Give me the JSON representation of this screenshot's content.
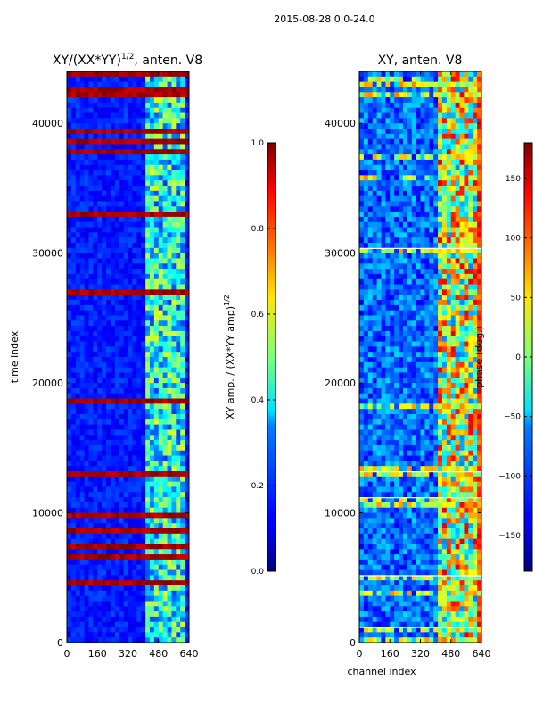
{
  "figure_title": "2015-08-28 0.0-24.0",
  "chart_data": [
    {
      "type": "heatmap",
      "title_prefix": "XY/(XX*YY)",
      "title_exponent": "1/2",
      "title_suffix": ", anten. V8",
      "xlabel": "",
      "ylabel": "time index",
      "x_ticks": [
        0,
        160,
        320,
        480,
        640
      ],
      "y_ticks": [
        0,
        10000,
        20000,
        30000,
        40000
      ],
      "xlim": [
        0,
        640
      ],
      "ylim": [
        0,
        44000
      ],
      "colormap": "jet",
      "colorbar": {
        "label_text": "XY amp. / (XX*YY amp)",
        "label_exponent": "1/2",
        "range": [
          0.0,
          1.0
        ],
        "ticks": [
          "0.0",
          "0.2",
          "0.4",
          "0.6",
          "0.8",
          "1.0"
        ]
      }
    },
    {
      "type": "heatmap",
      "title": "XY, anten. V8",
      "xlabel": "channel index",
      "ylabel": "",
      "x_ticks": [
        0,
        160,
        320,
        480,
        640
      ],
      "y_ticks": [
        0,
        10000,
        20000,
        30000,
        40000
      ],
      "xlim": [
        0,
        640
      ],
      "ylim": [
        0,
        44000
      ],
      "colormap": "jet",
      "colorbar": {
        "label": "phase (deg.)",
        "range": [
          -180,
          180
        ],
        "ticks": [
          -150,
          -100,
          -50,
          0,
          50,
          100,
          150
        ]
      }
    }
  ]
}
